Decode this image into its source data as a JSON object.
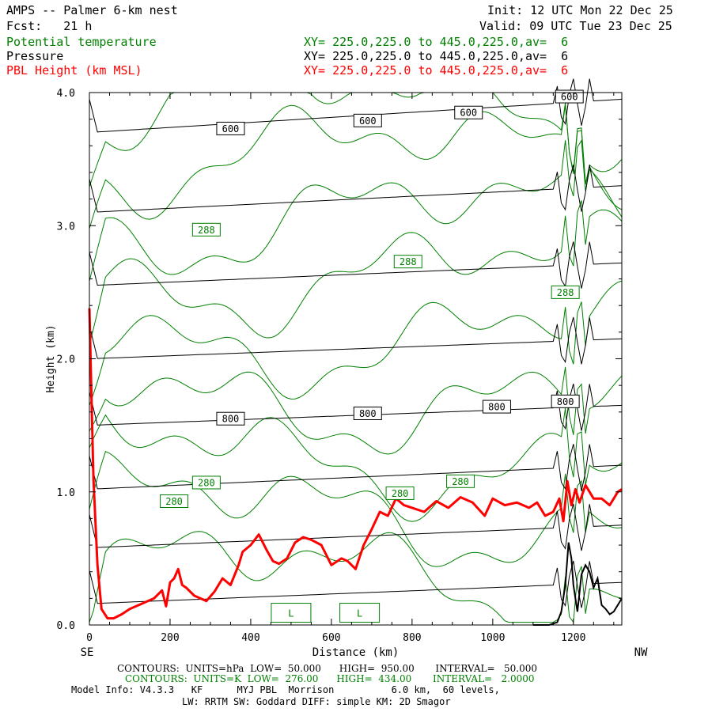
{
  "header": {
    "title": "AMPS -- Palmer 6-km nest",
    "fcst": "Fcst:   21 h",
    "init": "Init: 12 UTC Mon 22 Dec 25",
    "valid": "Valid: 09 UTC Tue 23 Dec 25",
    "fields": [
      {
        "name": "Potential temperature",
        "xy": "XY= 225.0,225.0 to 445.0,225.0,av=  6",
        "color": "#008000"
      },
      {
        "name": "Pressure",
        "xy": "XY= 225.0,225.0 to 445.0,225.0,av=  6",
        "color": "#000000"
      },
      {
        "name": "PBL Height (km MSL)",
        "xy": "XY= 225.0,225.0 to 445.0,225.0,av=  6",
        "color": "#ff0000"
      }
    ]
  },
  "chart_data": {
    "type": "line",
    "xlabel": "Distance (km)",
    "ylabel": "Height (km)",
    "xlim": [
      0,
      1320
    ],
    "ylim": [
      0,
      4.0
    ],
    "x_ticks": [
      "0",
      "200",
      "400",
      "600",
      "800",
      "1000",
      "1200"
    ],
    "y_ticks": [
      "0.0",
      "1.0",
      "2.0",
      "3.0",
      "4.0"
    ],
    "x_end_labels": {
      "left": "SE",
      "right": "NW"
    },
    "pressure_contours": {
      "units": "hPa",
      "color": "#000000",
      "levels": [
        {
          "y0": 3.7,
          "y1": 3.95,
          "label": "600"
        },
        {
          "y0": 3.1,
          "y1": 3.3,
          "label": ""
        },
        {
          "y0": 2.55,
          "y1": 2.72,
          "label": ""
        },
        {
          "y0": 2.0,
          "y1": 2.15,
          "label": ""
        },
        {
          "y0": 1.5,
          "y1": 1.65,
          "label": "800"
        },
        {
          "y0": 1.02,
          "y1": 1.2,
          "label": ""
        },
        {
          "y0": 0.58,
          "y1": 0.75,
          "label": ""
        },
        {
          "y0": 0.16,
          "y1": 0.32,
          "label": ""
        }
      ],
      "box_labels": [
        {
          "x": 350,
          "y": 3.73,
          "text": "600"
        },
        {
          "x": 690,
          "y": 3.79,
          "text": "600"
        },
        {
          "x": 940,
          "y": 3.85,
          "text": "600"
        },
        {
          "x": 1190,
          "y": 3.97,
          "text": "600"
        },
        {
          "x": 350,
          "y": 1.55,
          "text": "800"
        },
        {
          "x": 690,
          "y": 1.59,
          "text": "800"
        },
        {
          "x": 1010,
          "y": 1.64,
          "text": "800"
        },
        {
          "x": 1180,
          "y": 1.68,
          "text": "800"
        }
      ]
    },
    "theta_contours": {
      "units": "K",
      "color": "#008000",
      "box_labels": [
        {
          "x": 290,
          "y": 2.97,
          "text": "288"
        },
        {
          "x": 790,
          "y": 2.73,
          "text": "288"
        },
        {
          "x": 1180,
          "y": 2.5,
          "text": "288"
        },
        {
          "x": 290,
          "y": 1.07,
          "text": "280"
        },
        {
          "x": 210,
          "y": 0.93,
          "text": "280"
        },
        {
          "x": 770,
          "y": 0.99,
          "text": "280"
        },
        {
          "x": 920,
          "y": 1.08,
          "text": "280"
        }
      ]
    },
    "low_labels": [
      {
        "x": 500,
        "y": 0.08,
        "text": "L"
      },
      {
        "x": 670,
        "y": 0.08,
        "text": "L"
      }
    ],
    "series": [
      {
        "name": "PBL Height (km MSL)",
        "color": "#ff0000",
        "x": [
          0,
          10,
          20,
          30,
          45,
          60,
          80,
          100,
          130,
          160,
          180,
          190,
          200,
          210,
          220,
          230,
          240,
          260,
          290,
          310,
          330,
          350,
          370,
          380,
          400,
          420,
          440,
          455,
          470,
          490,
          510,
          530,
          550,
          575,
          600,
          625,
          640,
          660,
          680,
          700,
          720,
          740,
          760,
          780,
          800,
          830,
          860,
          890,
          920,
          950,
          980,
          1000,
          1030,
          1060,
          1090,
          1110,
          1130,
          1150,
          1165,
          1175,
          1185,
          1195,
          1205,
          1215,
          1230,
          1250,
          1270,
          1290,
          1310,
          1320
        ],
        "values": [
          2.38,
          1.1,
          0.45,
          0.12,
          0.05,
          0.05,
          0.08,
          0.12,
          0.16,
          0.2,
          0.26,
          0.14,
          0.32,
          0.35,
          0.42,
          0.3,
          0.28,
          0.22,
          0.18,
          0.25,
          0.35,
          0.3,
          0.45,
          0.55,
          0.6,
          0.68,
          0.56,
          0.48,
          0.46,
          0.5,
          0.62,
          0.66,
          0.64,
          0.6,
          0.45,
          0.5,
          0.48,
          0.42,
          0.6,
          0.72,
          0.85,
          0.82,
          0.95,
          0.9,
          0.88,
          0.85,
          0.93,
          0.88,
          0.96,
          0.92,
          0.82,
          0.95,
          0.9,
          0.92,
          0.88,
          0.92,
          0.82,
          0.85,
          0.95,
          0.78,
          1.08,
          0.9,
          1.02,
          0.92,
          1.05,
          0.95,
          0.95,
          0.9,
          1.0,
          1.02
        ]
      }
    ],
    "terrain": {
      "color": "#000000",
      "x": [
        1100,
        1140,
        1160,
        1170,
        1180,
        1188,
        1195,
        1200,
        1210,
        1220,
        1230,
        1240,
        1250,
        1260,
        1270,
        1280,
        1290,
        1300,
        1310,
        1320
      ],
      "values": [
        0.0,
        0.0,
        0.02,
        0.1,
        0.3,
        0.62,
        0.5,
        0.3,
        0.1,
        0.38,
        0.45,
        0.4,
        0.28,
        0.35,
        0.15,
        0.12,
        0.08,
        0.1,
        0.15,
        0.2
      ]
    }
  },
  "footer": {
    "black_contours": "CONTOURS:  UNITS=hPa  LOW=  50.000      HIGH=  950.00       INTERVAL=   50.000",
    "green_contours": "CONTOURS:  UNITS=K  LOW=  276.00      HIGH=  434.00       INTERVAL=   2.0000",
    "model_info": "Model Info: V4.3.3   KF      MYJ PBL  Morrison          6.0 km,  60 levels,",
    "physics": "LW: RRTM SW: Goddard DIFF: simple KM: 2D Smagor"
  }
}
